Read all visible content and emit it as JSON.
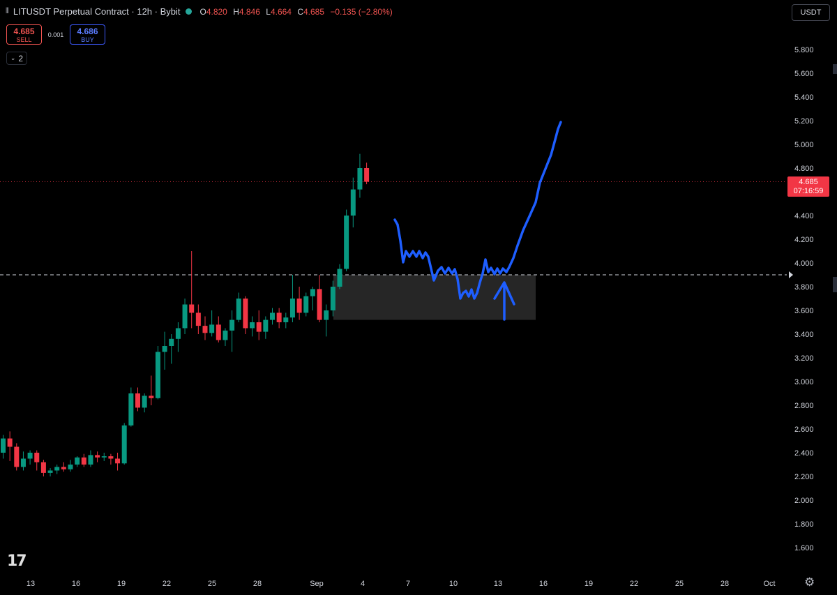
{
  "header": {
    "symbol_icon": "chart-candle-icon",
    "title": "LITUSDT Perpetual Contract · 12h · Bybit",
    "ohlc": [
      {
        "k": "O",
        "v": "4.820"
      },
      {
        "k": "H",
        "v": "4.846"
      },
      {
        "k": "L",
        "v": "4.664"
      },
      {
        "k": "C",
        "v": "4.685"
      }
    ],
    "change": "−0.135 (−2.80%)"
  },
  "trade": {
    "sell_price": "4.685",
    "sell_label": "SELL",
    "spread": "0.001",
    "buy_price": "4.686",
    "buy_label": "BUY"
  },
  "indicators_toggle": "2",
  "currency_button": "USDT",
  "last_price": {
    "price": "4.685",
    "countdown": "07:16:59"
  },
  "colors": {
    "up": "#089981",
    "down": "#f23645",
    "drawing": "#1e5eff",
    "zone": "#2a2a2a",
    "background": "#000000"
  },
  "chart_data": {
    "type": "candlestick",
    "timeframe": "12h",
    "y_ticks": [
      "5.800",
      "5.600",
      "5.400",
      "5.200",
      "5.000",
      "4.800",
      "4.600",
      "4.400",
      "4.200",
      "4.000",
      "3.800",
      "3.600",
      "3.400",
      "3.200",
      "3.000",
      "2.800",
      "2.600",
      "2.400",
      "2.200",
      "2.000",
      "1.800",
      "1.600"
    ],
    "x_ticks": [
      "13",
      "16",
      "19",
      "22",
      "25",
      "28",
      "Sep",
      "4",
      "7",
      "10",
      "13",
      "16",
      "19",
      "22",
      "25",
      "28",
      "Oct"
    ],
    "ylim": [
      1.45,
      5.95
    ],
    "candles": [
      [
        2.4,
        2.55,
        2.35,
        2.52
      ],
      [
        2.52,
        2.58,
        2.33,
        2.45
      ],
      [
        2.45,
        2.48,
        2.25,
        2.28
      ],
      [
        2.28,
        2.41,
        2.25,
        2.35
      ],
      [
        2.35,
        2.42,
        2.3,
        2.4
      ],
      [
        2.4,
        2.42,
        2.25,
        2.32
      ],
      [
        2.32,
        2.34,
        2.2,
        2.23
      ],
      [
        2.23,
        2.27,
        2.2,
        2.25
      ],
      [
        2.25,
        2.3,
        2.22,
        2.28
      ],
      [
        2.28,
        2.32,
        2.24,
        2.26
      ],
      [
        2.26,
        2.34,
        2.24,
        2.3
      ],
      [
        2.3,
        2.37,
        2.28,
        2.36
      ],
      [
        2.36,
        2.39,
        2.28,
        2.3
      ],
      [
        2.3,
        2.42,
        2.28,
        2.38
      ],
      [
        2.38,
        2.41,
        2.32,
        2.36
      ],
      [
        2.36,
        2.4,
        2.33,
        2.37
      ],
      [
        2.37,
        2.39,
        2.3,
        2.35
      ],
      [
        2.35,
        2.4,
        2.25,
        2.31
      ],
      [
        2.31,
        2.65,
        2.3,
        2.63
      ],
      [
        2.63,
        2.95,
        2.62,
        2.9
      ],
      [
        2.9,
        2.95,
        2.75,
        2.78
      ],
      [
        2.78,
        2.9,
        2.74,
        2.88
      ],
      [
        2.88,
        3.05,
        2.8,
        2.86
      ],
      [
        2.86,
        3.3,
        2.85,
        3.25
      ],
      [
        3.25,
        3.42,
        3.1,
        3.3
      ],
      [
        3.3,
        3.4,
        3.15,
        3.36
      ],
      [
        3.36,
        3.5,
        3.25,
        3.45
      ],
      [
        3.45,
        3.7,
        3.4,
        3.65
      ],
      [
        3.65,
        4.1,
        3.45,
        3.58
      ],
      [
        3.58,
        3.65,
        3.4,
        3.47
      ],
      [
        3.47,
        3.55,
        3.35,
        3.41
      ],
      [
        3.41,
        3.6,
        3.38,
        3.48
      ],
      [
        3.48,
        3.55,
        3.33,
        3.35
      ],
      [
        3.35,
        3.45,
        3.3,
        3.43
      ],
      [
        3.43,
        3.6,
        3.25,
        3.52
      ],
      [
        3.52,
        3.75,
        3.5,
        3.7
      ],
      [
        3.7,
        3.72,
        3.4,
        3.45
      ],
      [
        3.45,
        3.55,
        3.38,
        3.5
      ],
      [
        3.5,
        3.6,
        3.35,
        3.42
      ],
      [
        3.42,
        3.55,
        3.36,
        3.52
      ],
      [
        3.52,
        3.62,
        3.48,
        3.58
      ],
      [
        3.58,
        3.62,
        3.45,
        3.5
      ],
      [
        3.5,
        3.58,
        3.45,
        3.54
      ],
      [
        3.54,
        3.9,
        3.5,
        3.7
      ],
      [
        3.7,
        3.8,
        3.52,
        3.58
      ],
      [
        3.58,
        3.75,
        3.55,
        3.72
      ],
      [
        3.72,
        3.8,
        3.6,
        3.78
      ],
      [
        3.78,
        3.9,
        3.5,
        3.52
      ],
      [
        3.52,
        3.65,
        3.38,
        3.6
      ],
      [
        3.6,
        3.85,
        3.55,
        3.8
      ],
      [
        3.8,
        3.99,
        3.78,
        3.95
      ],
      [
        3.95,
        4.45,
        3.93,
        4.4
      ],
      [
        4.4,
        4.72,
        4.3,
        4.62
      ],
      [
        4.62,
        4.92,
        4.55,
        4.8
      ],
      [
        4.8,
        4.846,
        4.664,
        4.685
      ]
    ],
    "last_price_line": 4.685,
    "support_level": 3.9,
    "zone": {
      "from": "Sep 2",
      "to": "Sep 14",
      "low": 3.52,
      "high": 3.9
    },
    "drawing": "hand-drawn projection: pullback into zone then rally to ~5.2"
  }
}
